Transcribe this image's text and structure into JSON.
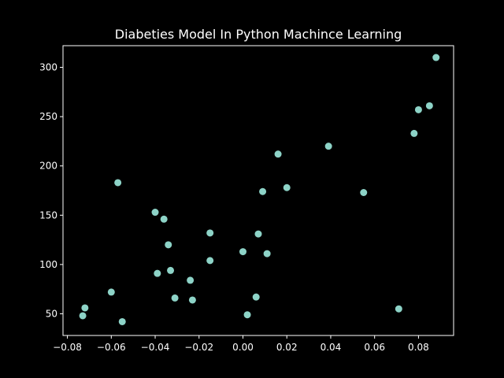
{
  "chart_data": {
    "type": "scatter",
    "title": "Diabeties Model In Python Machince Learning",
    "xlabel": "",
    "ylabel": "",
    "xlim": [
      -0.082,
      0.096
    ],
    "ylim": [
      28,
      322
    ],
    "x_ticks": [
      -0.08,
      -0.06,
      -0.04,
      -0.02,
      0.0,
      0.02,
      0.04,
      0.06,
      0.08
    ],
    "x_tick_labels": [
      "−0.08",
      "−0.06",
      "−0.04",
      "−0.02",
      "0.00",
      "0.02",
      "0.04",
      "0.06",
      "0.08"
    ],
    "y_ticks": [
      50,
      100,
      150,
      200,
      250,
      300
    ],
    "y_tick_labels": [
      "50",
      "100",
      "150",
      "200",
      "250",
      "300"
    ],
    "grid": false,
    "background": "#000000",
    "foreground": "#ffffff",
    "marker_color": "#8dd3c7",
    "series": [
      {
        "points": [
          {
            "x": 0.088,
            "y": 310
          },
          {
            "x": 0.085,
            "y": 261
          },
          {
            "x": 0.08,
            "y": 257
          },
          {
            "x": 0.078,
            "y": 233
          },
          {
            "x": 0.071,
            "y": 55
          },
          {
            "x": 0.055,
            "y": 173
          },
          {
            "x": 0.039,
            "y": 220
          },
          {
            "x": 0.02,
            "y": 178
          },
          {
            "x": 0.016,
            "y": 212
          },
          {
            "x": 0.011,
            "y": 111
          },
          {
            "x": 0.009,
            "y": 174
          },
          {
            "x": 0.007,
            "y": 131
          },
          {
            "x": 0.006,
            "y": 67
          },
          {
            "x": 0.002,
            "y": 49
          },
          {
            "x": 0.0,
            "y": 113
          },
          {
            "x": -0.015,
            "y": 132
          },
          {
            "x": -0.015,
            "y": 104
          },
          {
            "x": -0.023,
            "y": 64
          },
          {
            "x": -0.024,
            "y": 84
          },
          {
            "x": -0.031,
            "y": 66
          },
          {
            "x": -0.033,
            "y": 94
          },
          {
            "x": -0.034,
            "y": 120
          },
          {
            "x": -0.036,
            "y": 146
          },
          {
            "x": -0.039,
            "y": 91
          },
          {
            "x": -0.04,
            "y": 153
          },
          {
            "x": -0.055,
            "y": 42
          },
          {
            "x": -0.057,
            "y": 183
          },
          {
            "x": -0.06,
            "y": 72
          },
          {
            "x": -0.072,
            "y": 56
          },
          {
            "x": -0.073,
            "y": 48
          }
        ]
      }
    ]
  }
}
